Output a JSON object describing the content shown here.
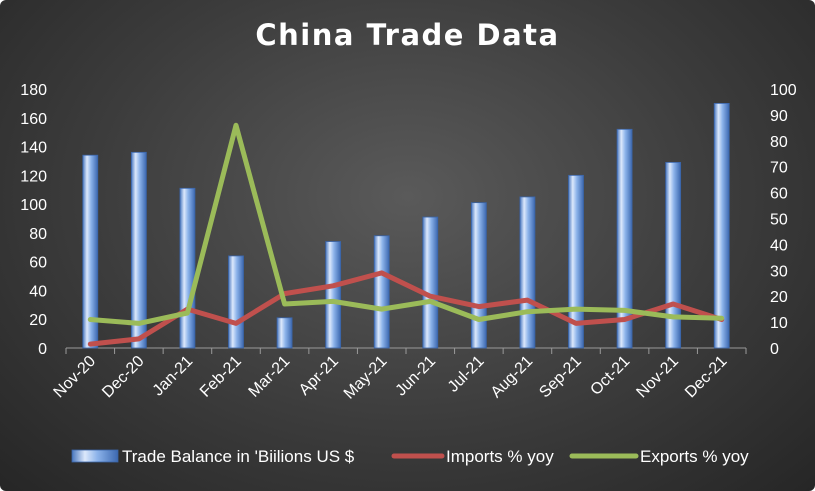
{
  "chart_data": {
    "type": "bar",
    "title": "China Trade Data",
    "categories": [
      "Nov-20",
      "Dec-20",
      "Jan-21",
      "Feb-21",
      "Mar-21",
      "Apr-21",
      "May-21",
      "Jun-21",
      "Jul-21",
      "Aug-21",
      "Sep-21",
      "Oct-21",
      "Nov-21",
      "Dec-21"
    ],
    "series": [
      {
        "name": "Trade Balance in 'Biilions US $",
        "type": "bar",
        "axis": "left",
        "color": "#5b8fd6",
        "values": [
          134,
          136,
          111,
          64,
          21,
          74,
          78,
          91,
          101,
          105,
          120,
          152,
          129,
          170
        ]
      },
      {
        "name": "Imports % yoy",
        "type": "line",
        "axis": "right",
        "color": "#c0504d",
        "values": [
          1.5,
          3.5,
          15,
          9.5,
          21,
          24,
          29,
          20,
          16,
          18.5,
          9.5,
          11,
          17,
          11
        ]
      },
      {
        "name": "Exports % yoy",
        "type": "line",
        "axis": "right",
        "color": "#9bbb59",
        "values": [
          11,
          9.5,
          13.5,
          86,
          17,
          18,
          15,
          18,
          11,
          14,
          15,
          14.5,
          12,
          11.5
        ]
      }
    ],
    "y_left": {
      "range": [
        0,
        180
      ],
      "ticks": [
        "0",
        "20",
        "40",
        "60",
        "80",
        "100",
        "120",
        "140",
        "160",
        "180"
      ]
    },
    "y_right": {
      "range": [
        0,
        100
      ],
      "ticks": [
        "0",
        "10",
        "20",
        "30",
        "40",
        "50",
        "60",
        "70",
        "80",
        "90",
        "100"
      ]
    },
    "grid": false,
    "legend_position": "bottom"
  }
}
